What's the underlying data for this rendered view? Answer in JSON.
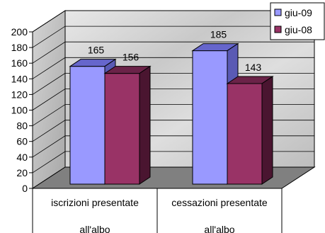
{
  "chart_data": {
    "type": "bar",
    "categories": [
      [
        "iscrizioni presentate",
        "all'albo"
      ],
      [
        "cessazioni presentate",
        "all'albo"
      ]
    ],
    "series": [
      {
        "name": "giu-09",
        "values": [
          165,
          185
        ],
        "color": "#9999ff",
        "top_color": "#6666cc",
        "side_color": "#5a5ab4"
      },
      {
        "name": "giu-08",
        "values": [
          156,
          143
        ],
        "color": "#993366",
        "top_color": "#6b2348",
        "side_color": "#4a1530"
      }
    ],
    "ylim": [
      0,
      200
    ],
    "yticks": [
      0,
      20,
      40,
      60,
      80,
      100,
      120,
      140,
      160,
      180,
      200
    ],
    "title": "",
    "xlabel": "",
    "ylabel": "",
    "grid": true,
    "legend_position": "top-right",
    "floor_color": "#808080",
    "wall_texture": "marble-gray"
  }
}
